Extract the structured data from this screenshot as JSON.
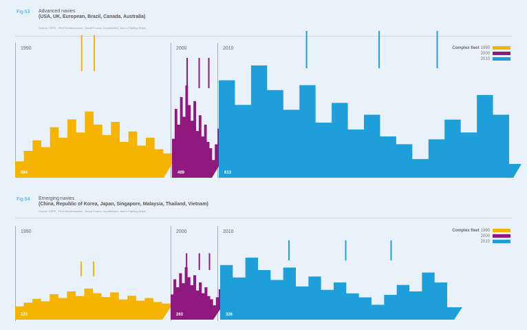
{
  "colors": {
    "1990": "#f5b400",
    "2000": "#8f1a7f",
    "2010": "#1e9fd9"
  },
  "chart_data": [
    {
      "type": "bar",
      "fig_label": "Fig 53",
      "title": "Advanced navies",
      "subtitle": "(USA, UK, European, Brazil, Canada, Australia)",
      "source": "Source: SIPRI - Fleet Modernisation - Naval Forces, Unpublished, Jane's Fighting Ships",
      "categories": [
        "1990",
        "2000",
        "2010"
      ],
      "values": [
        594,
        489,
        613
      ],
      "value_labels": [
        "594",
        "489",
        "613"
      ],
      "legend_title": "Complex fleet",
      "legend": [
        "1990",
        "2000",
        "2010"
      ],
      "legend_position": "top-right"
    },
    {
      "type": "bar",
      "fig_label": "Fig 54",
      "title": "Emerging navies",
      "subtitle": "(China, Republic of Korea, Japan, Singapore, Malaysia, Thailand, Vietnam)",
      "source": "Source: SIPRI - Fleet Modernisation - Naval Forces, Unpublished, Jane's Fighting Ships",
      "categories": [
        "1990",
        "2000",
        "2010"
      ],
      "values": [
        223,
        263,
        326
      ],
      "value_labels": [
        "223",
        "263",
        "326"
      ],
      "legend_title": "Complex fleet",
      "legend": [
        "1990",
        "2000",
        "2010"
      ],
      "legend_position": "top-right"
    }
  ]
}
